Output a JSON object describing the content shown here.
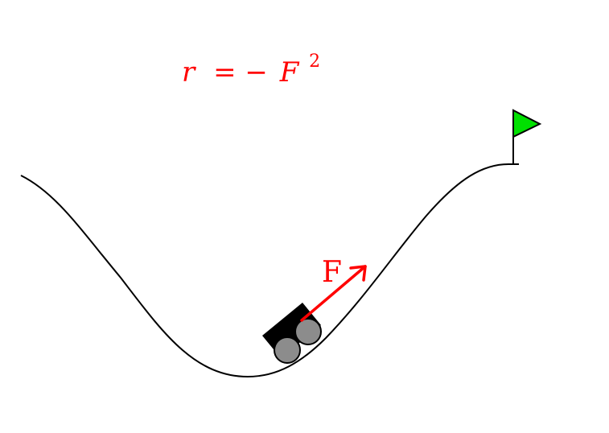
{
  "equation": {
    "lhs": "r",
    "op": "= −",
    "var": "F",
    "exponent": "2"
  },
  "force_label": "F",
  "colors": {
    "curve": "#000000",
    "force_arrow": "#ff0000",
    "equation": "#ff0000",
    "flag": "#00e000",
    "cart_body": "#000000",
    "wheel": "#8c8c8c"
  }
}
